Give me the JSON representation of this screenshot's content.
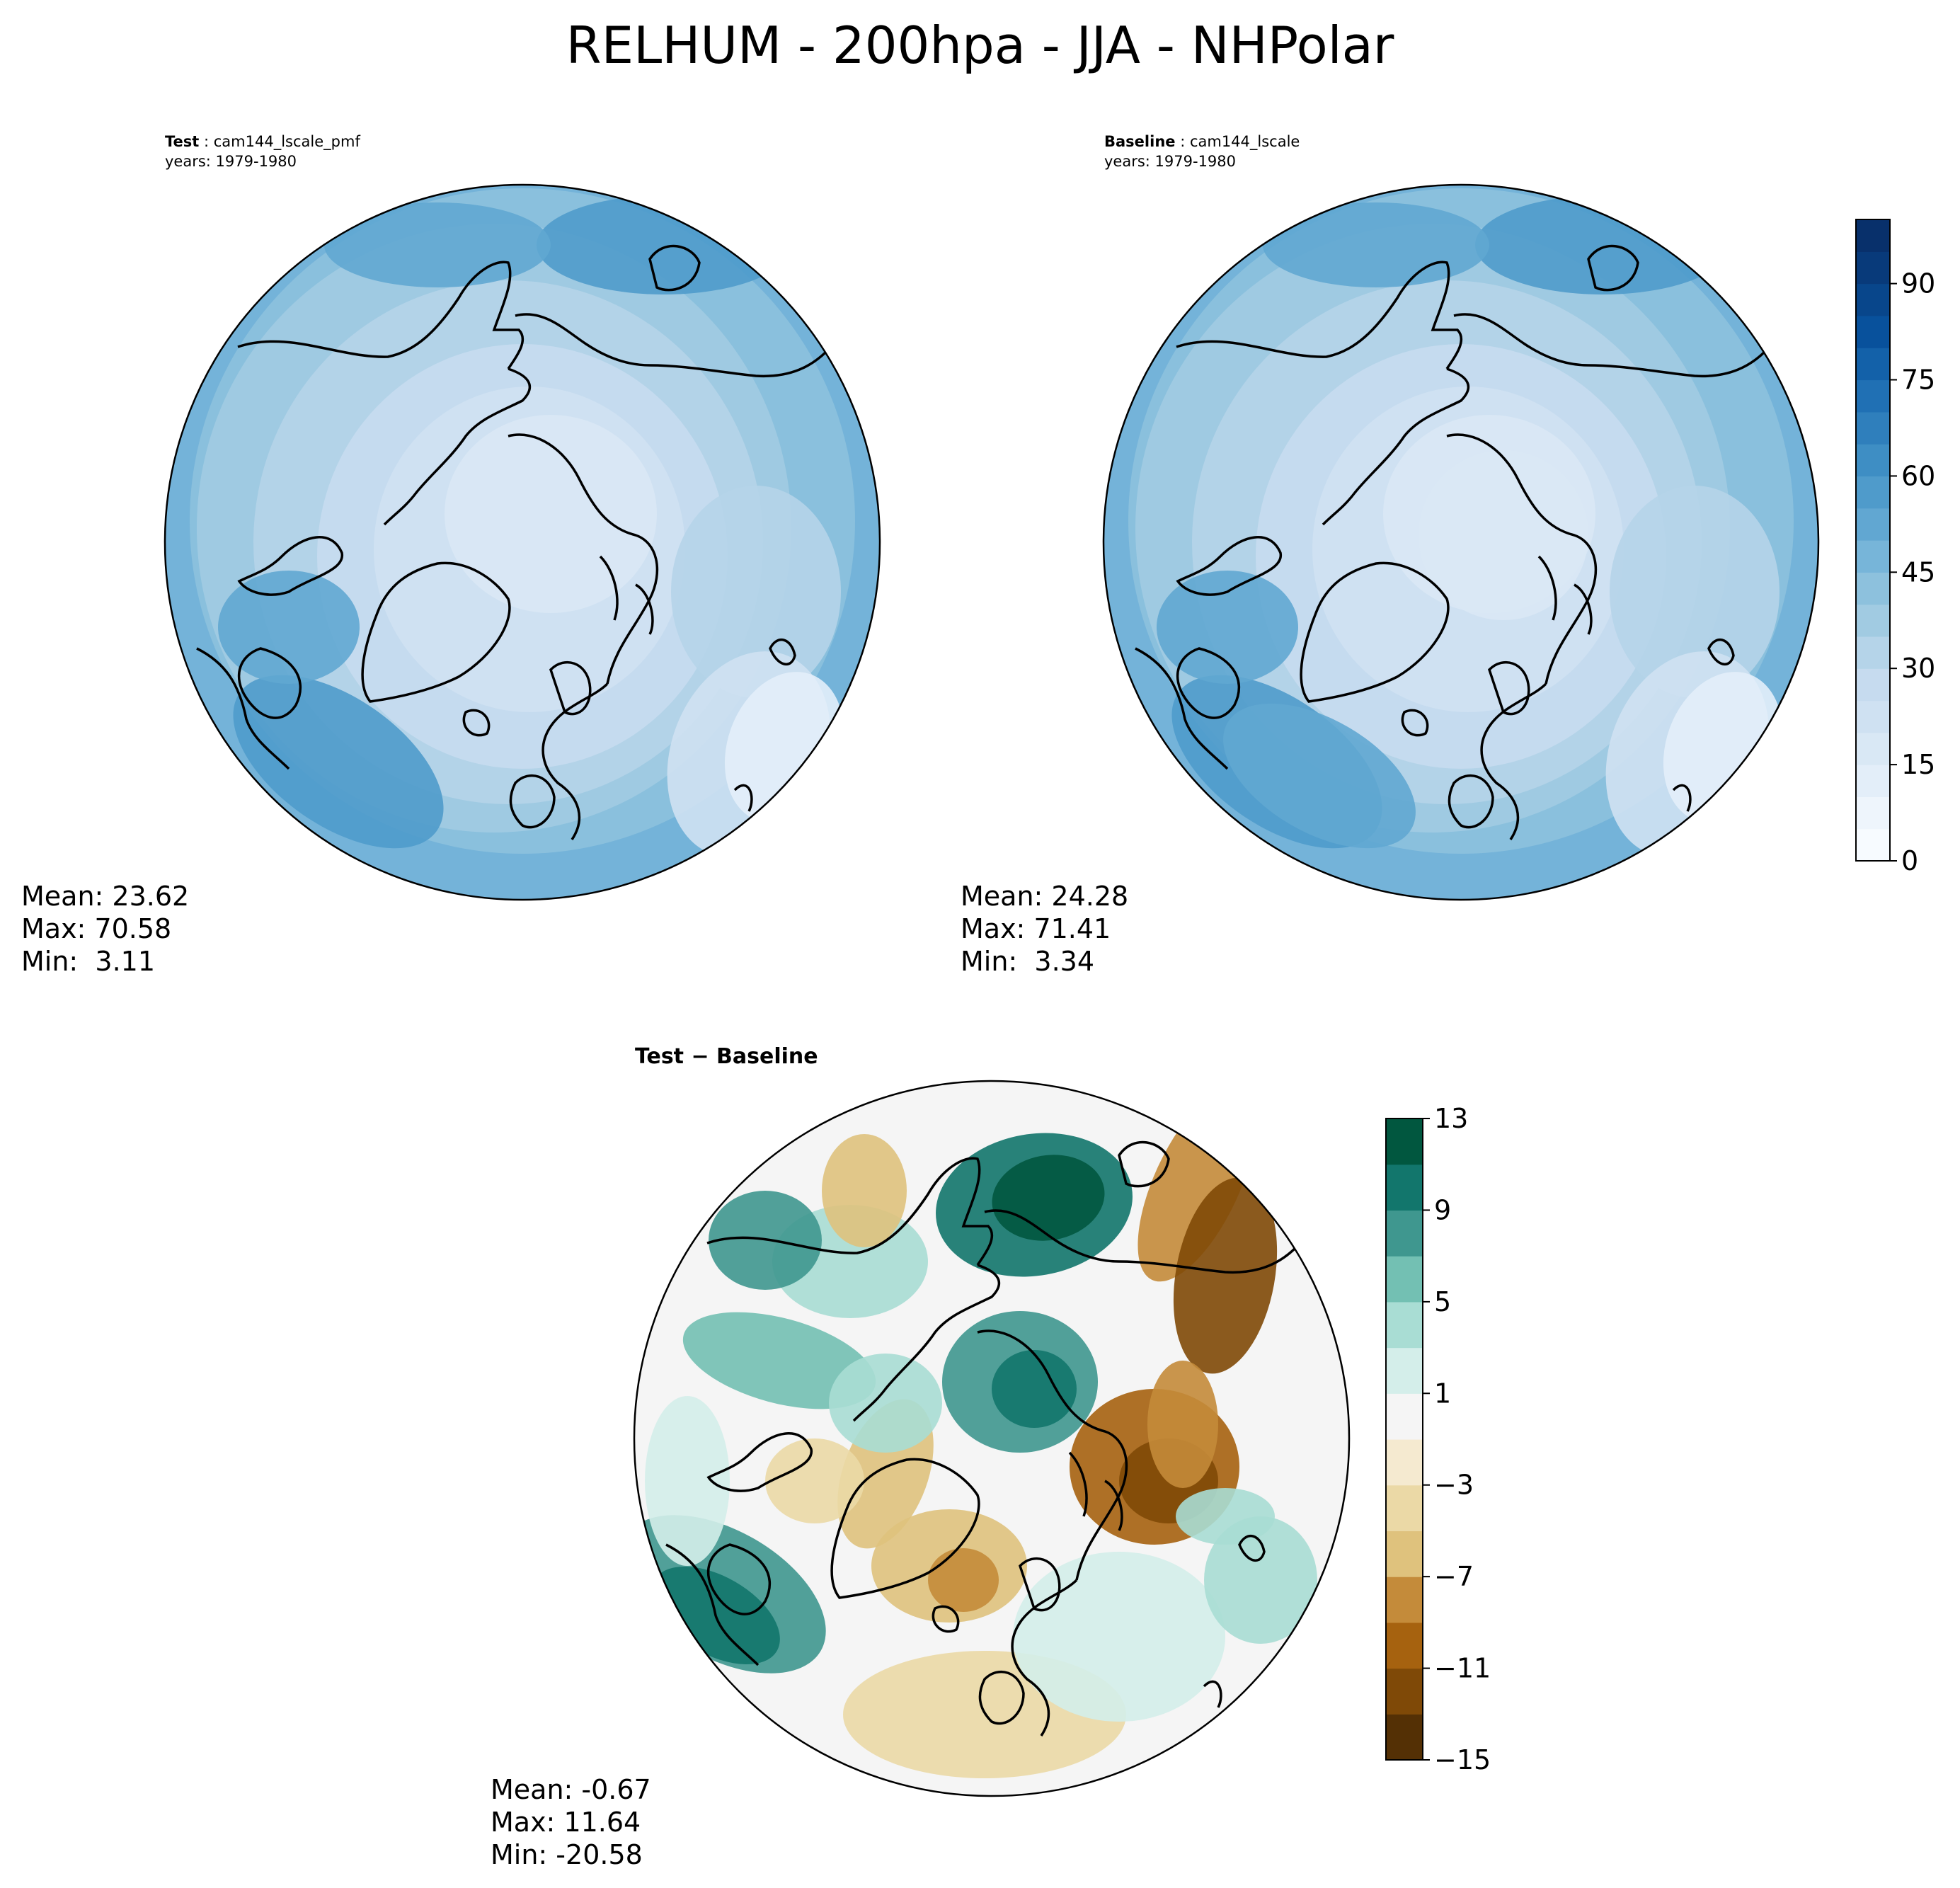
{
  "title": "RELHUM - 200hpa - JJA - NHPolar",
  "panels": [
    {
      "id": "test",
      "label_bold": "Test",
      "label_rest": " : cam144_lscale_pmf",
      "years": "years: 1979-1980",
      "stats": {
        "mean": "Mean: 23.62",
        "max": "Max: 70.58",
        "min": "Min:  3.11"
      }
    },
    {
      "id": "baseline",
      "label_bold": "Baseline",
      "label_rest": " : cam144_lscale",
      "years": "years: 1979-1980",
      "stats": {
        "mean": "Mean: 24.28",
        "max": "Max: 71.41",
        "min": "Min:  3.34"
      }
    },
    {
      "id": "diff",
      "label": "Test − Baseline",
      "stats": {
        "mean": "Mean: -0.67",
        "max": "Max: 11.64",
        "min": "Min: -20.58"
      }
    }
  ],
  "colorbar_main": {
    "range": [
      0,
      100
    ],
    "ticks": [
      "0",
      "15",
      "30",
      "45",
      "60",
      "75",
      "90"
    ],
    "tick_values": [
      0,
      15,
      30,
      45,
      60,
      75,
      90
    ],
    "colors": [
      "#f7fbff",
      "#eef5fc",
      "#e3eef9",
      "#d9e8f5",
      "#cfe1f2",
      "#c6dbef",
      "#b5d4e9",
      "#a1cbe2",
      "#8dc1dd",
      "#77b5d9",
      "#61a7d2",
      "#4f9bcb",
      "#3e8ec4",
      "#2f7fbc",
      "#2070b4",
      "#1361a9",
      "#08519c",
      "#08468b",
      "#083a7a",
      "#08306b"
    ]
  },
  "colorbar_diff": {
    "range": [
      -15,
      13
    ],
    "ticks": [
      "13",
      "9",
      "5",
      "1",
      "−3",
      "−7",
      "−11",
      "−15"
    ],
    "tick_values": [
      13,
      9,
      5,
      1,
      -3,
      -7,
      -11,
      -15
    ],
    "colors": [
      "#543005",
      "#7f4907",
      "#a6620f",
      "#c48b3a",
      "#dfc27d",
      "#ebd9a6",
      "#f5ead0",
      "#f5f5f5",
      "#d4eeea",
      "#a9ddd4",
      "#73c0b3",
      "#3f978f",
      "#12766c",
      "#01573f"
    ]
  }
}
